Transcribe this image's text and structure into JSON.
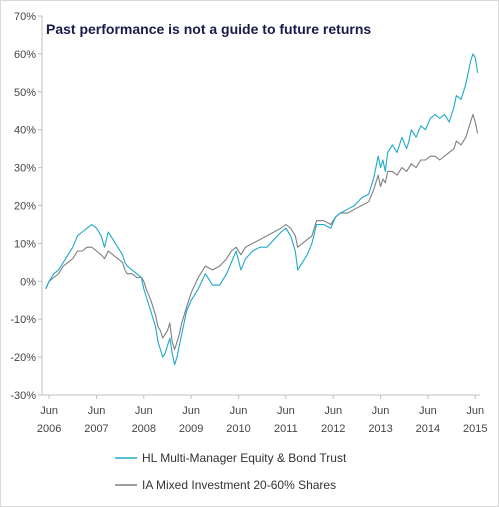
{
  "chart_data": {
    "type": "line",
    "title": "Past performance is not a guide to future returns",
    "xlabel": "",
    "ylabel": "",
    "ylim": [
      -30,
      70
    ],
    "xlim": [
      2006.3,
      2015.55
    ],
    "grid": false,
    "legend_position": "bottom",
    "y_ticks": [
      70,
      60,
      50,
      40,
      30,
      20,
      10,
      0,
      -10,
      -20,
      -30
    ],
    "y_tick_labels": [
      "70%",
      "60%",
      "50%",
      "40%",
      "30%",
      "20%",
      "10%",
      "0%",
      "-10%",
      "-20%",
      "-30%"
    ],
    "x_ticks": [
      {
        "month": "Jun",
        "year": "2006",
        "pos": 2006.45
      },
      {
        "month": "Jun",
        "year": "2007",
        "pos": 2007.45
      },
      {
        "month": "Jun",
        "year": "2008",
        "pos": 2008.45
      },
      {
        "month": "Jun",
        "year": "2009",
        "pos": 2009.45
      },
      {
        "month": "Jun",
        "year": "2010",
        "pos": 2010.45
      },
      {
        "month": "Jun",
        "year": "2011",
        "pos": 2011.45
      },
      {
        "month": "Jun",
        "year": "2012",
        "pos": 2012.45
      },
      {
        "month": "Jun",
        "year": "2013",
        "pos": 2013.45
      },
      {
        "month": "Jun",
        "year": "2014",
        "pos": 2014.45
      },
      {
        "month": "Jun",
        "year": "2015",
        "pos": 2015.45
      }
    ],
    "series": [
      {
        "name": "HL Multi-Manager Equity & Bond Trust",
        "color": "#1fa9c9",
        "x": [
          2006.38,
          2006.45,
          2006.55,
          2006.65,
          2006.75,
          2006.85,
          2006.95,
          2007.05,
          2007.15,
          2007.25,
          2007.35,
          2007.45,
          2007.55,
          2007.62,
          2007.7,
          2007.8,
          2007.9,
          2008.0,
          2008.05,
          2008.1,
          2008.2,
          2008.3,
          2008.4,
          2008.45,
          2008.5,
          2008.6,
          2008.7,
          2008.75,
          2008.8,
          2008.85,
          2008.9,
          2008.95,
          2009.0,
          2009.05,
          2009.1,
          2009.15,
          2009.2,
          2009.25,
          2009.35,
          2009.45,
          2009.6,
          2009.75,
          2009.9,
          2010.05,
          2010.2,
          2010.3,
          2010.4,
          2010.5,
          2010.6,
          2010.75,
          2010.9,
          2011.05,
          2011.2,
          2011.35,
          2011.45,
          2011.55,
          2011.6,
          2011.65,
          2011.7,
          2011.8,
          2011.9,
          2012.0,
          2012.1,
          2012.25,
          2012.4,
          2012.5,
          2012.6,
          2012.75,
          2012.9,
          2013.05,
          2013.2,
          2013.3,
          2013.4,
          2013.45,
          2013.5,
          2013.55,
          2013.6,
          2013.7,
          2013.8,
          2013.9,
          2014.0,
          2014.05,
          2014.1,
          2014.2,
          2014.3,
          2014.4,
          2014.5,
          2014.6,
          2014.7,
          2014.8,
          2014.9,
          2015.0,
          2015.05,
          2015.15,
          2015.25,
          2015.3,
          2015.35,
          2015.4,
          2015.45,
          2015.5
        ],
        "y": [
          -2,
          0,
          2,
          3,
          5,
          7,
          9,
          12,
          13,
          14,
          15,
          14,
          12,
          9,
          13,
          11,
          9,
          7,
          5,
          4,
          3,
          2,
          1,
          -2,
          -4,
          -8,
          -12,
          -16,
          -18,
          -20,
          -19,
          -17,
          -15,
          -19,
          -22,
          -20,
          -17,
          -14,
          -8,
          -5,
          -2,
          2,
          -1,
          -1,
          2,
          5,
          8,
          3,
          6,
          8,
          9,
          9,
          11,
          13,
          14,
          12,
          10,
          8,
          3,
          5,
          7,
          10,
          15,
          15,
          14,
          17,
          18,
          19,
          20,
          22,
          23,
          27,
          33,
          30,
          32,
          29,
          34,
          36,
          34,
          38,
          35,
          37,
          40,
          38,
          41,
          40,
          43,
          44,
          43,
          44,
          42,
          46,
          49,
          48,
          52,
          55,
          58,
          60,
          59,
          55
        ]
      },
      {
        "name": "IA Mixed Investment 20-60% Shares",
        "color": "#7f7f7f",
        "x": [
          2006.38,
          2006.45,
          2006.55,
          2006.65,
          2006.75,
          2006.85,
          2006.95,
          2007.05,
          2007.15,
          2007.25,
          2007.35,
          2007.45,
          2007.55,
          2007.62,
          2007.7,
          2007.8,
          2007.9,
          2008.0,
          2008.05,
          2008.1,
          2008.2,
          2008.3,
          2008.4,
          2008.45,
          2008.5,
          2008.6,
          2008.7,
          2008.75,
          2008.8,
          2008.85,
          2008.9,
          2008.95,
          2009.0,
          2009.05,
          2009.1,
          2009.15,
          2009.2,
          2009.25,
          2009.35,
          2009.45,
          2009.6,
          2009.75,
          2009.9,
          2010.05,
          2010.2,
          2010.3,
          2010.4,
          2010.5,
          2010.6,
          2010.75,
          2010.9,
          2011.05,
          2011.2,
          2011.35,
          2011.45,
          2011.55,
          2011.6,
          2011.65,
          2011.7,
          2011.8,
          2011.9,
          2012.0,
          2012.1,
          2012.25,
          2012.4,
          2012.5,
          2012.6,
          2012.75,
          2012.9,
          2013.05,
          2013.2,
          2013.3,
          2013.4,
          2013.45,
          2013.5,
          2013.55,
          2013.6,
          2013.7,
          2013.8,
          2013.9,
          2014.0,
          2014.05,
          2014.1,
          2014.2,
          2014.3,
          2014.4,
          2014.5,
          2014.6,
          2014.7,
          2014.8,
          2014.9,
          2015.0,
          2015.05,
          2015.15,
          2015.25,
          2015.3,
          2015.35,
          2015.4,
          2015.45,
          2015.5
        ],
        "y": [
          -2,
          0,
          1,
          2,
          4,
          5,
          6,
          8,
          8,
          9,
          9,
          8,
          7,
          6,
          8,
          7,
          6,
          5,
          3,
          2,
          2,
          1,
          1,
          0,
          -2,
          -5,
          -9,
          -12,
          -13,
          -15,
          -14,
          -13,
          -11,
          -16,
          -18,
          -16,
          -14,
          -11,
          -7,
          -3,
          1,
          4,
          3,
          4,
          6,
          8,
          9,
          7,
          9,
          10,
          11,
          12,
          13,
          14,
          15,
          14,
          13,
          12,
          9,
          10,
          11,
          12,
          16,
          16,
          15,
          17,
          18,
          18,
          19,
          20,
          21,
          24,
          28,
          25,
          27,
          26,
          29,
          29,
          28,
          30,
          29,
          30,
          31,
          30,
          32,
          32,
          33,
          33,
          32,
          33,
          34,
          35,
          37,
          36,
          38,
          40,
          42,
          44,
          42,
          39
        ]
      }
    ]
  }
}
